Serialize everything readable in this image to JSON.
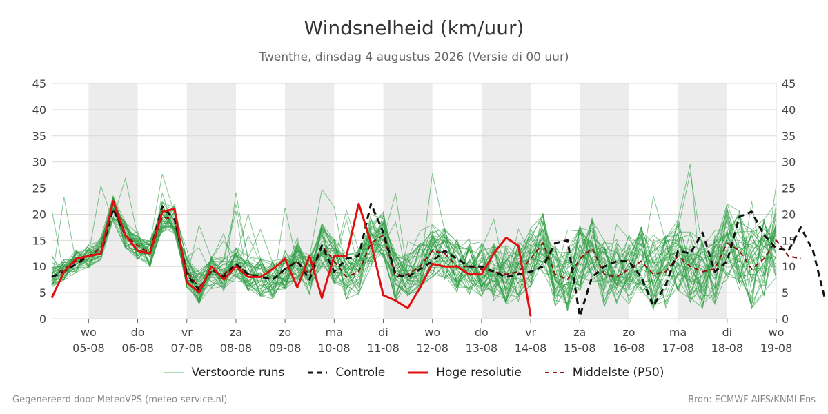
{
  "chart_data": {
    "type": "line",
    "title": "Windsnelheid (km/uur)",
    "subtitle": "Twenthe, dinsdag  4 augustus 2026 (Versie di 00 uur)",
    "ylim": [
      0,
      45
    ],
    "yticks": [
      0,
      5,
      10,
      15,
      20,
      25,
      30,
      35,
      40,
      45
    ],
    "xlim": [
      -0.75,
      14
    ],
    "x_ticks": [
      {
        "day": "wo",
        "date": "05-08"
      },
      {
        "day": "do",
        "date": "06-08"
      },
      {
        "day": "vr",
        "date": "07-08"
      },
      {
        "day": "za",
        "date": "08-08"
      },
      {
        "day": "zo",
        "date": "09-08"
      },
      {
        "day": "ma",
        "date": "10-08"
      },
      {
        "day": "di",
        "date": "11-08"
      },
      {
        "day": "wo",
        "date": "12-08"
      },
      {
        "day": "do",
        "date": "13-08"
      },
      {
        "day": "vr",
        "date": "14-08"
      },
      {
        "day": "za",
        "date": "15-08"
      },
      {
        "day": "zo",
        "date": "16-08"
      },
      {
        "day": "ma",
        "date": "17-08"
      },
      {
        "day": "di",
        "date": "18-08"
      },
      {
        "day": "wo",
        "date": "19-08"
      }
    ],
    "shaded_days": [
      0,
      2,
      4,
      6,
      8,
      10,
      12
    ],
    "grid": true,
    "legend_position": "bottom",
    "colors": {
      "ensemble": "#2e9e44",
      "control": "#111111",
      "high_res": "#e01010",
      "median": "#8b1010",
      "shade": "#ececec",
      "grid": "#d9d9d9"
    },
    "x_step_days": 0.25,
    "series": [
      {
        "name": "Controle",
        "style": "dashed",
        "x_start": -0.75,
        "values": [
          8,
          9,
          10.5,
          12,
          12.5,
          21,
          16,
          13,
          12.5,
          21.5,
          19,
          8.5,
          5.5,
          9.5,
          8,
          10.5,
          8.5,
          8,
          7.5,
          9.5,
          11,
          7.5,
          14,
          9,
          11.5,
          12,
          22,
          16.5,
          8.5,
          8,
          9.5,
          11,
          13,
          11.5,
          10,
          10,
          9,
          8,
          8.5,
          9,
          10,
          14.5,
          15,
          0.5,
          8,
          10,
          11,
          11,
          8,
          2.5,
          6.5,
          13,
          12.5,
          16.5,
          9,
          11,
          19.5,
          20.5,
          16,
          13.5,
          13,
          17.5,
          13,
          3.5
        ]
      },
      {
        "name": "Hoge resolutie",
        "style": "solid",
        "x_start": -0.75,
        "values": [
          4,
          9,
          11.5,
          12,
          12.5,
          22.5,
          16,
          13,
          12.5,
          20.5,
          21,
          7,
          5,
          10,
          7.5,
          10,
          8,
          8,
          9.5,
          11.5,
          6,
          12,
          4,
          12,
          12,
          22,
          14.5,
          4.5,
          3.5,
          2,
          6,
          10.5,
          10,
          10,
          8.5,
          8.5,
          12.5,
          15.5,
          14,
          0.5
        ]
      },
      {
        "name": "Middelste (P50)",
        "style": "dashed",
        "x_start": -0.75,
        "values": [
          8,
          9.5,
          11,
          12,
          13.5,
          21,
          16,
          14,
          12.5,
          19.5,
          19,
          9,
          6,
          9,
          8.5,
          10.5,
          8.5,
          8,
          7.5,
          9.5,
          11,
          8.5,
          14,
          11,
          8,
          9,
          14.5,
          16,
          8,
          8.5,
          10,
          13,
          12.5,
          10,
          10,
          9.5,
          9,
          8.5,
          9,
          11.5,
          14.5,
          8.5,
          7.5,
          11.5,
          13.5,
          8.5,
          8,
          9.5,
          11,
          8.5,
          9,
          12,
          10,
          9,
          9.5,
          14.5,
          13,
          9.5,
          11.5,
          15,
          12,
          11.5
        ]
      }
    ],
    "ensemble": {
      "name": "Verstoorde runs",
      "members": 40,
      "x_start": -0.75,
      "typical_range": [
        0,
        42
      ]
    }
  },
  "legend": {
    "ensemble": "Verstoorde runs",
    "control": "Controle",
    "high_res": "Hoge resolutie",
    "median": "Middelste (P50)"
  },
  "footer": {
    "left": "Gegenereerd door MeteoVPS (meteo-service.nl)",
    "right": "Bron: ECMWF AIFS/KNMI Ens"
  }
}
